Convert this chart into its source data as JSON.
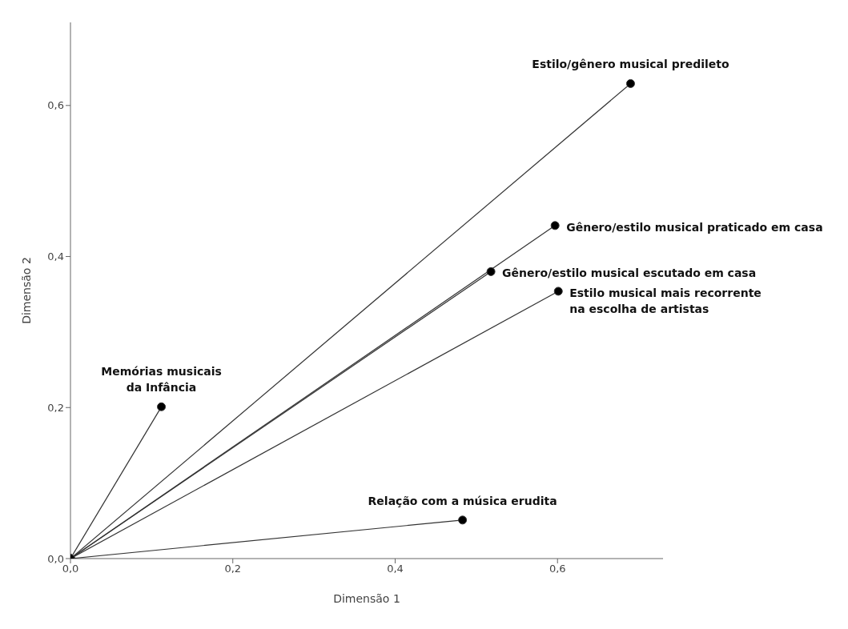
{
  "chart_data": {
    "type": "line",
    "xlabel": "Dimensão 1",
    "ylabel": "Dimensão 2",
    "xlim": [
      0,
      0.73
    ],
    "ylim": [
      0,
      0.71
    ],
    "xticks": [
      {
        "value": 0,
        "label": "0,0"
      },
      {
        "value": 0.2,
        "label": "0,2"
      },
      {
        "value": 0.4,
        "label": "0,4"
      },
      {
        "value": 0.6,
        "label": "0,6"
      }
    ],
    "yticks": [
      {
        "value": 0,
        "label": "0,0"
      },
      {
        "value": 0.2,
        "label": "0,2"
      },
      {
        "value": 0.4,
        "label": "0,4"
      },
      {
        "value": 0.6,
        "label": "0,6"
      }
    ],
    "marker": "circle",
    "grid": false,
    "legend": false,
    "series": [
      {
        "name": "Estilo/gênero musical predileto",
        "color": "#333333",
        "x": [
          0,
          0.69
        ],
        "values": [
          0,
          0.629
        ]
      },
      {
        "name": "Gênero/estilo musical praticado em casa",
        "color": "#333333",
        "x": [
          0,
          0.597
        ],
        "values": [
          0,
          0.441
        ]
      },
      {
        "name": "Gênero/estilo musical escutado em casa",
        "color": "#333333",
        "x": [
          0,
          0.518
        ],
        "values": [
          0,
          0.38
        ]
      },
      {
        "name": "Estilo musical mais recorrente\nna escolha de artistas",
        "color": "#333333",
        "x": [
          0,
          0.601
        ],
        "values": [
          0,
          0.354
        ]
      },
      {
        "name": "Memórias musicais\nda Infância",
        "color": "#333333",
        "x": [
          0,
          0.112
        ],
        "values": [
          0,
          0.201
        ]
      },
      {
        "name": "Relação com a música erudita",
        "color": "#333333",
        "x": [
          0,
          0.483
        ],
        "values": [
          0,
          0.051
        ]
      }
    ]
  }
}
